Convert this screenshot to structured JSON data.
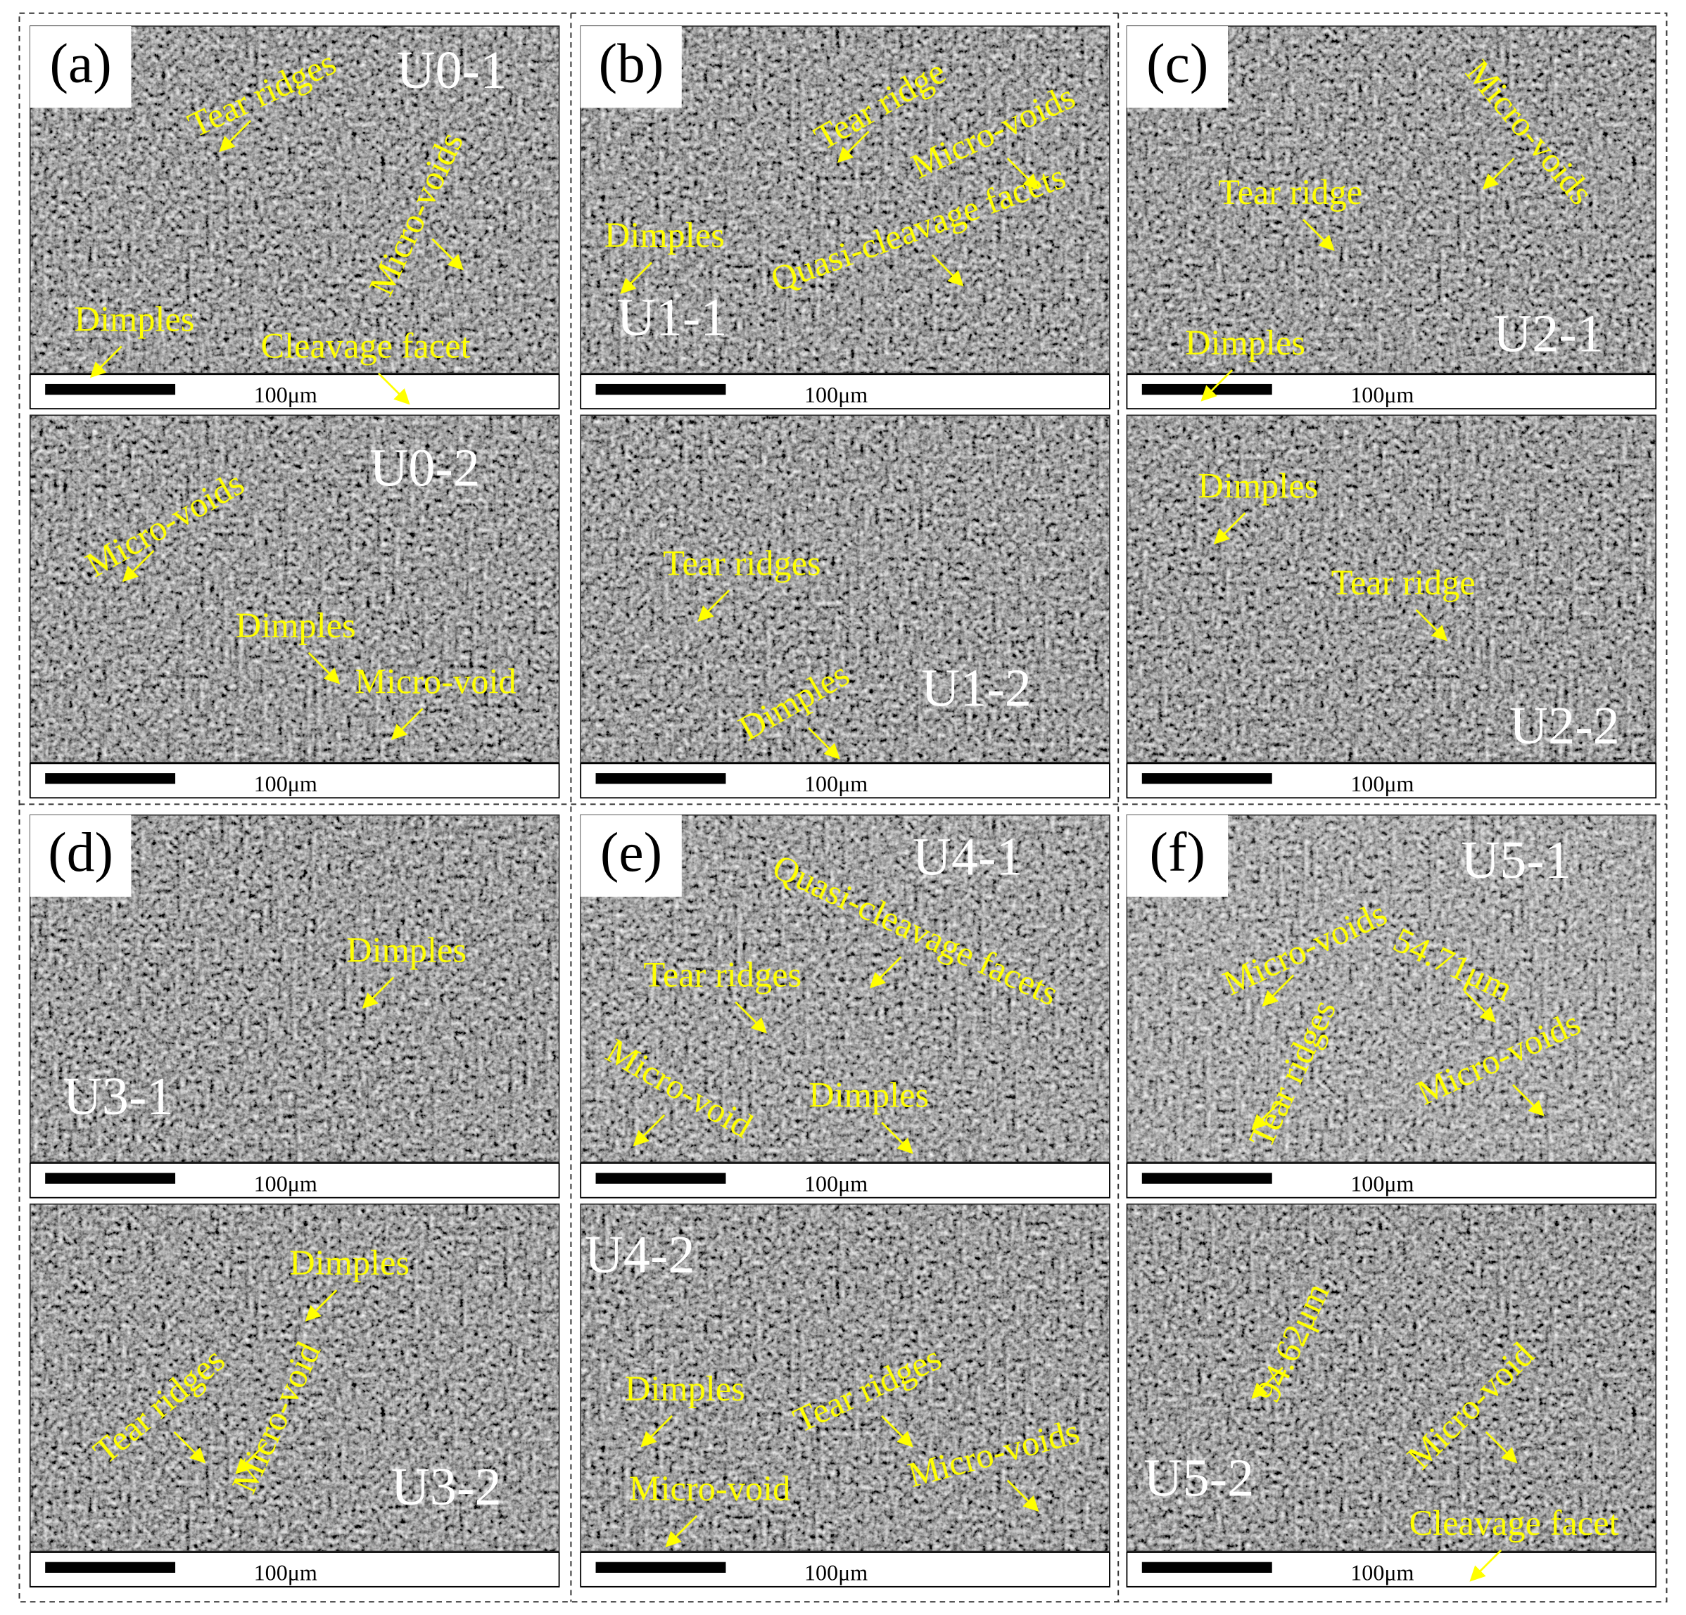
{
  "figure": {
    "groups": [
      {
        "label": "(a)",
        "panels": [
          {
            "name": "U0-1",
            "annotations": [
              "Tear ridges",
              "Micro-voids",
              "Dimples",
              "Cleavage facet"
            ],
            "scale": "100μm"
          },
          {
            "name": "U0-2",
            "annotations": [
              "Micro-voids",
              "Dimples",
              "Micro-void"
            ],
            "scale": "100μm"
          }
        ]
      },
      {
        "label": "(b)",
        "panels": [
          {
            "name": "U1-1",
            "annotations": [
              "Tear ridge",
              "Micro-voids",
              "Dimples",
              "Quasi-cleavage facets"
            ],
            "scale": "100μm"
          },
          {
            "name": "U1-2",
            "annotations": [
              "Tear ridges",
              "Dimples"
            ],
            "scale": "100μm"
          }
        ]
      },
      {
        "label": "(c)",
        "panels": [
          {
            "name": "U2-1",
            "annotations": [
              "Micro-voids",
              "Tear ridge",
              "Dimples"
            ],
            "scale": "100μm"
          },
          {
            "name": "U2-2",
            "annotations": [
              "Dimples",
              "Tear ridge"
            ],
            "scale": "100μm"
          }
        ]
      },
      {
        "label": "(d)",
        "panels": [
          {
            "name": "U3-1",
            "annotations": [
              "Dimples"
            ],
            "scale": "100μm"
          },
          {
            "name": "U3-2",
            "annotations": [
              "Dimples",
              "Tear ridges",
              "Micro-void"
            ],
            "scale": "100μm"
          }
        ]
      },
      {
        "label": "(e)",
        "panels": [
          {
            "name": "U4-1",
            "annotations": [
              "Quasi-cleavage facets",
              "Tear ridges",
              "Micro-void",
              "Dimples"
            ],
            "scale": "100μm"
          },
          {
            "name": "U4-2",
            "annotations": [
              "Dimples",
              "Tear ridges",
              "Micro-void",
              "Micro-voids"
            ],
            "scale": "100μm"
          }
        ]
      },
      {
        "label": "(f)",
        "panels": [
          {
            "name": "U5-1",
            "annotations": [
              "Micro-voids",
              "54.71μm",
              "Tear ridges",
              "Micro-voids"
            ],
            "scale": "100μm"
          },
          {
            "name": "U5-2",
            "annotations": [
              "94.62μm",
              "Micro-void",
              "Cleavage facet"
            ],
            "scale": "100μm"
          }
        ]
      }
    ]
  }
}
